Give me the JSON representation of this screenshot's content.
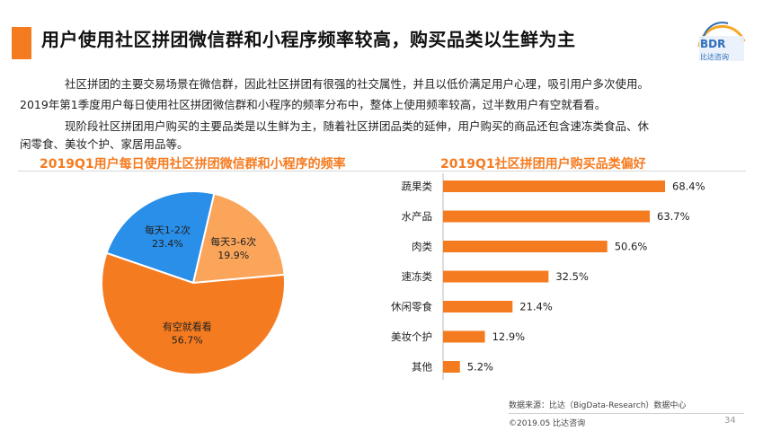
{
  "header": {
    "title": "用户使用社区拼团微信群和小程序频率较高，购买品类以生鲜为主",
    "logo_text": "BDR",
    "logo_cn": "比达咨询"
  },
  "intro": {
    "line1": "社区拼团的主要交易场景在微信群，因此社区拼团有很强的社交属性，并且以低价满足用户心理，吸引用户多次使用。",
    "line2": "2019年第1季度用户每日使用社区拼团微信群和小程序的频率分布中，整体上使用频率较高，过半数用户有空就看看。",
    "line3": "现阶段社区拼团用户购买的主要品类是以生鲜为主，随着社区拼团品类的延伸，用户购买的商品还包含速冻类食品、休",
    "line4": "闲零食、美妆个护、家居用品等。"
  },
  "colors": {
    "accent": "#f57b20",
    "blue": "#2a8fe8",
    "light_orange": "#fba55a"
  },
  "chart_data": [
    {
      "type": "pie",
      "title": "2019Q1用户每日使用社区拼团微信群和小程序的频率",
      "categories": [
        "有空就看看",
        "每天1-2次",
        "每天3-6次"
      ],
      "values": [
        56.7,
        23.4,
        19.9
      ],
      "labels": [
        "56.7%",
        "23.4%",
        "19.9%"
      ],
      "colors": [
        "#f57b20",
        "#2a8fe8",
        "#fba55a"
      ]
    },
    {
      "type": "bar",
      "orientation": "horizontal",
      "title": "2019Q1社区拼团用户购买品类偏好",
      "categories": [
        "蔬果类",
        "水产品",
        "肉类",
        "速冻类",
        "休闲零食",
        "美妆个护",
        "其他"
      ],
      "values": [
        68.4,
        63.7,
        50.6,
        32.5,
        21.4,
        12.9,
        5.2
      ],
      "labels": [
        "68.4%",
        "63.7%",
        "50.6%",
        "32.5%",
        "21.4%",
        "12.9%",
        "5.2%"
      ],
      "color": "#f57b20"
    }
  ],
  "footer": {
    "source": "数据来源：比达（BigData-Research）数据中心",
    "copyright": "©2019.05 比达咨询",
    "page_number": "34"
  }
}
